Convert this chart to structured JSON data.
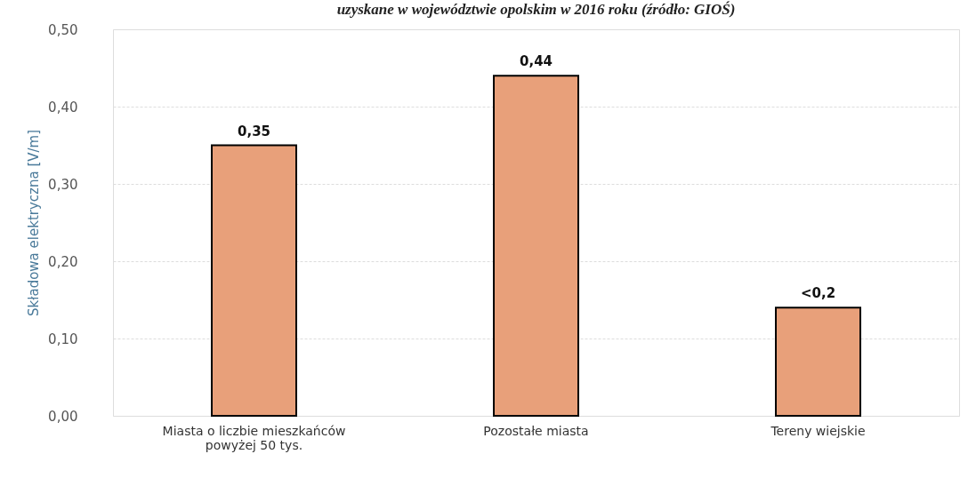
{
  "chart_data": {
    "type": "bar",
    "title": "uzyskane w województwie opolskim w 2016 roku (źródło: GIOŚ)",
    "ylabel": "Składowa elektryczna [V/m]",
    "categories": [
      "Miasta o liczbie mieszkańców powyżej 50 tys.",
      "Pozostałe miasta",
      "Tereny wiejskie"
    ],
    "series": [
      {
        "color": "#e8a07a",
        "values": [
          0.35,
          0.44,
          0.14
        ],
        "value_labels": [
          "0,35",
          "0,44",
          "<0,2"
        ]
      }
    ],
    "ylim": [
      0,
      0.5
    ],
    "yticks": [
      {
        "value": 0,
        "label": "0,00"
      },
      {
        "value": 0.1,
        "label": "0,10"
      },
      {
        "value": 0.2,
        "label": "0,20"
      },
      {
        "value": 0.3,
        "label": "0,30"
      },
      {
        "value": 0.4,
        "label": "0,40"
      },
      {
        "value": 0.5,
        "label": "0,50"
      }
    ],
    "grid": "y"
  }
}
